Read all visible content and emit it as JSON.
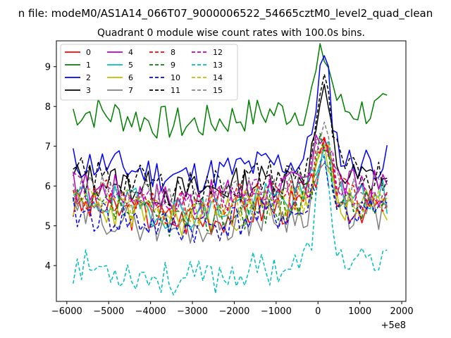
{
  "chart_data": {
    "type": "line",
    "suptitle": "n file: modeM0/AS1A14_066T07_9000006522_54665cztM0_level2_quad_clean",
    "title": "Quadrant 0 module wise count rates with 100.0s bins.",
    "xlabel": "",
    "ylabel": "",
    "x_offset_label": "+5e8",
    "xlim": [
      -6250,
      2100
    ],
    "ylim": [
      3.1,
      9.65
    ],
    "xticks": [
      -6000,
      -5000,
      -4000,
      -3000,
      -2000,
      -1000,
      0,
      1000,
      2000
    ],
    "xtick_labels": [
      "−6000",
      "−5000",
      "−4000",
      "−3000",
      "−2000",
      "−1000",
      "0",
      "1000",
      "2000"
    ],
    "yticks": [
      4,
      5,
      6,
      7,
      8,
      9
    ],
    "ytick_labels": [
      "4",
      "5",
      "6",
      "7",
      "8",
      "9"
    ],
    "grid": false,
    "legend_position": "upper-left",
    "x_start": -5850,
    "x_step": 100,
    "x_count": 76,
    "peak_x": 130,
    "series": [
      {
        "name": "0",
        "color": "#ff0000",
        "style": "solid",
        "base": 5.5,
        "peak": 1.3,
        "seed": 3
      },
      {
        "name": "1",
        "color": "#008000",
        "style": "solid",
        "base": 7.9,
        "peak": 1.4,
        "seed": 7
      },
      {
        "name": "2",
        "color": "#0000ff",
        "style": "solid",
        "base": 6.6,
        "peak": 2.5,
        "seed": 11
      },
      {
        "name": "3",
        "color": "#000000",
        "style": "solid",
        "base": 6.2,
        "peak": 2.0,
        "seed": 13
      },
      {
        "name": "4",
        "color": "#bf00bf",
        "style": "solid",
        "base": 6.0,
        "peak": 1.4,
        "seed": 17
      },
      {
        "name": "5",
        "color": "#00bfbf",
        "style": "solid",
        "base": 5.7,
        "peak": 1.3,
        "seed": 19
      },
      {
        "name": "6",
        "color": "#bfbf00",
        "style": "solid",
        "base": 5.5,
        "peak": 1.2,
        "seed": 23
      },
      {
        "name": "7",
        "color": "#808080",
        "style": "solid",
        "base": 5.3,
        "peak": 1.3,
        "seed": 29
      },
      {
        "name": "8",
        "color": "#ff0000",
        "style": "dashed",
        "base": 5.8,
        "peak": 1.3,
        "seed": 31
      },
      {
        "name": "9",
        "color": "#008000",
        "style": "dashed",
        "base": 5.5,
        "peak": 1.6,
        "seed": 37
      },
      {
        "name": "10",
        "color": "#0000ff",
        "style": "dashed",
        "base": 5.3,
        "peak": 1.3,
        "seed": 41
      },
      {
        "name": "11",
        "color": "#000000",
        "style": "dashed",
        "base": 6.3,
        "peak": 2.2,
        "seed": 43
      },
      {
        "name": "12",
        "color": "#bf00bf",
        "style": "dashed",
        "base": 5.9,
        "peak": 1.3,
        "seed": 47
      },
      {
        "name": "13",
        "color": "#00bfbf",
        "style": "dashed",
        "base": 4.0,
        "peak": 2.5,
        "seed": 53
      },
      {
        "name": "14",
        "color": "#bfbf00",
        "style": "dashed",
        "base": 5.7,
        "peak": 1.3,
        "seed": 59
      },
      {
        "name": "15",
        "color": "#808080",
        "style": "dashed",
        "base": 5.9,
        "peak": 1.6,
        "seed": 61
      }
    ]
  }
}
